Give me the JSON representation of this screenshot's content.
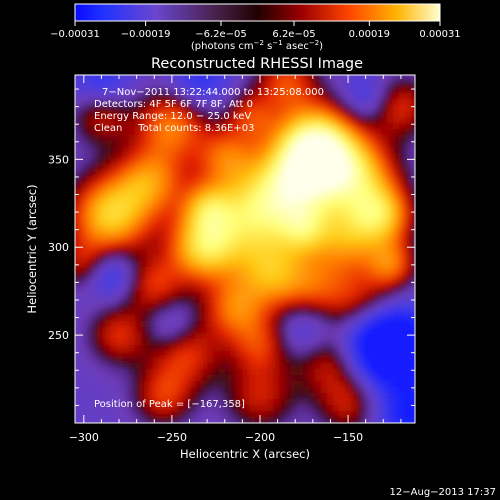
{
  "chart_data": {
    "type": "heatmap",
    "title": "Reconstructed RHESSI Image",
    "xlabel": "Heliocentric X (arcsec)",
    "ylabel": "Heliocentric Y (arcsec)",
    "xlim": [
      -305,
      -112
    ],
    "ylim": [
      200,
      398
    ],
    "x_ticks": [
      -300,
      -250,
      -200,
      -150
    ],
    "x_tick_labels": [
      "−300",
      "−250",
      "−200",
      "−150"
    ],
    "y_ticks": [
      250,
      300,
      350
    ],
    "y_tick_labels": [
      "250",
      "300",
      "350"
    ],
    "colorbar": {
      "range": [
        -0.00031,
        0.00031
      ],
      "ticks": [
        -0.00031,
        -0.00019,
        -6.2e-05,
        6.2e-05,
        0.00019,
        0.00031
      ],
      "tick_labels": [
        "−0.00031",
        "−0.00019",
        "−6.2e−05",
        "6.2e−05",
        "0.00019",
        "0.00031"
      ],
      "units_prefix": "(photons cm",
      "units_exp1": "−2",
      "units_mid": " s",
      "units_exp2": "−1",
      "units_mid2": " asec",
      "units_exp3": "−2",
      "units_suffix": ")"
    },
    "annotations": {
      "time_range": "7−Nov−2011 13:22:44.000 to 13:25:08.000",
      "detectors": "Detectors: 4F 5F 6F 7F 8F, Att 0",
      "energy": "Energy Range: 12.0 − 25.0 keV",
      "clean": "Clean     Total counts: 8.36E+03",
      "peak": "Position of Peak = [−167,358]"
    },
    "peak": [
      -167,
      358
    ],
    "footer_date": "12−Aug−2013 17:37",
    "colormap": [
      "#000000",
      "#0000ff",
      "#7a3cb8",
      "#ff2000",
      "#ff9000",
      "#ffff70",
      "#ffffff"
    ]
  }
}
